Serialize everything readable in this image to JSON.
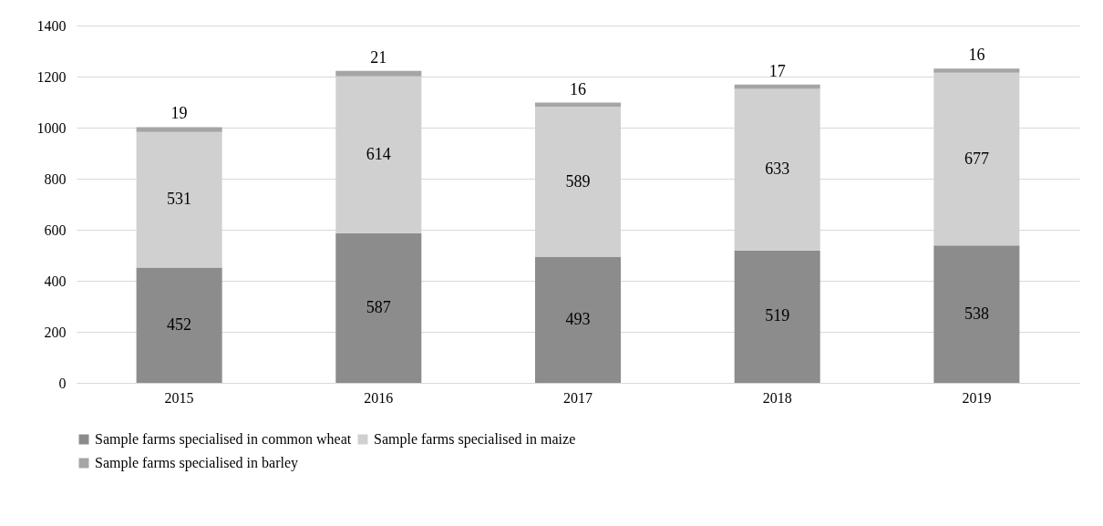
{
  "chart_data": {
    "type": "bar",
    "stacked": true,
    "categories": [
      "2015",
      "2016",
      "2017",
      "2018",
      "2019"
    ],
    "series": [
      {
        "name": "Sample farms specialised in common wheat",
        "color": "#8c8c8c",
        "values": [
          452,
          587,
          493,
          519,
          538
        ]
      },
      {
        "name": "Sample farms specialised in maize",
        "color": "#d0d0d0",
        "values": [
          531,
          614,
          589,
          633,
          677
        ]
      },
      {
        "name": "Sample farms  specialised in barley",
        "color": "#a5a5a5",
        "values": [
          19,
          21,
          16,
          17,
          16
        ]
      }
    ],
    "ylim": [
      0,
      1400
    ],
    "yticks": [
      0,
      200,
      400,
      600,
      800,
      1000,
      1200,
      1400
    ],
    "grid": "y",
    "legend": "bottom",
    "data_labels": true
  }
}
